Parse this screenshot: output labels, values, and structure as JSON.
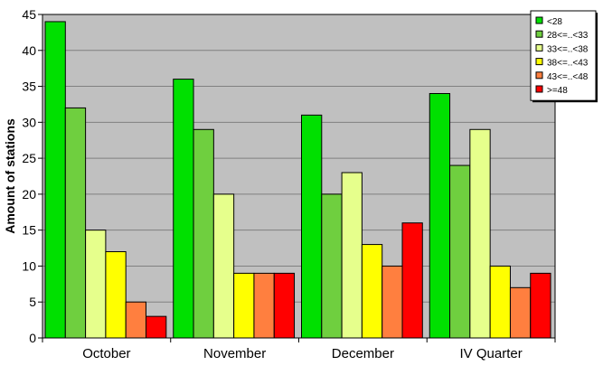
{
  "chart_data": {
    "type": "bar",
    "title": "",
    "xlabel": "",
    "ylabel": "Amount of stations",
    "ylim": [
      0,
      45
    ],
    "yticks": [
      0,
      5,
      10,
      15,
      20,
      25,
      30,
      35,
      40,
      45
    ],
    "grid": true,
    "legend_position": "top-right",
    "plot_background": "#c0c0c0",
    "categories": [
      "October",
      "November",
      "December",
      "IV Quarter"
    ],
    "series": [
      {
        "name": "<28",
        "color": "#00e000",
        "values": [
          44,
          36,
          31,
          34
        ]
      },
      {
        "name": "28<=..<33",
        "color": "#6fcf3f",
        "values": [
          32,
          29,
          20,
          24
        ]
      },
      {
        "name": "33<=..<38",
        "color": "#e6ff8c",
        "values": [
          15,
          20,
          23,
          29
        ]
      },
      {
        "name": "38<=..<43",
        "color": "#ffff00",
        "values": [
          12,
          9,
          13,
          10
        ]
      },
      {
        "name": "43<=..<48",
        "color": "#ff7f3f",
        "values": [
          5,
          9,
          10,
          7
        ]
      },
      {
        "name": ">=48",
        "color": "#ff0000",
        "values": [
          3,
          9,
          16,
          9
        ]
      }
    ]
  }
}
